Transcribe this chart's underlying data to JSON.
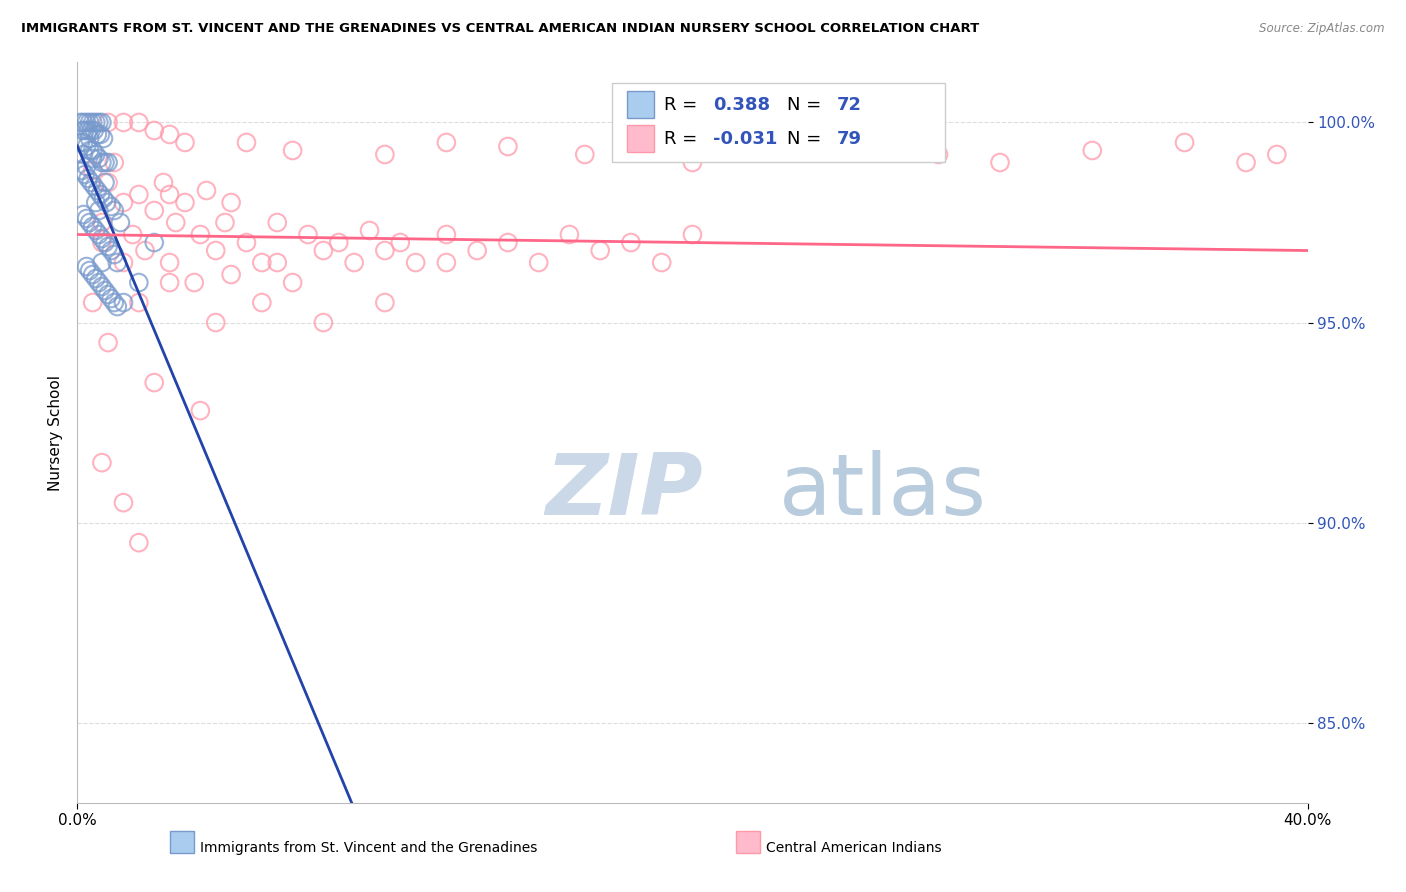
{
  "title": "IMMIGRANTS FROM ST. VINCENT AND THE GRENADINES VS CENTRAL AMERICAN INDIAN NURSERY SCHOOL CORRELATION CHART",
  "source": "Source: ZipAtlas.com",
  "ylabel": "Nursery School",
  "xlim": [
    0.0,
    40.0
  ],
  "ylim": [
    83.0,
    101.5
  ],
  "yticks": [
    85.0,
    90.0,
    95.0,
    100.0
  ],
  "ytick_labels": [
    "85.0%",
    "90.0%",
    "95.0%",
    "100.0%"
  ],
  "xtick_left": "0.0%",
  "xtick_right": "40.0%",
  "r_blue": 0.388,
  "n_blue": 72,
  "r_pink": -0.031,
  "n_pink": 79,
  "blue_edge": "#7799CC",
  "blue_fill": "#AACCEE",
  "pink_edge": "#FF99AA",
  "pink_fill": "#FFBBCC",
  "blue_line": "#2244AA",
  "pink_line": "#FF6688",
  "text_blue": "#3355BB",
  "watermark_color": "#DDEEF8",
  "grid_color": "#DDDDDD",
  "blue_points": [
    [
      0.1,
      100.0
    ],
    [
      0.2,
      100.0
    ],
    [
      0.3,
      100.0
    ],
    [
      0.4,
      100.0
    ],
    [
      0.5,
      100.0
    ],
    [
      0.6,
      100.0
    ],
    [
      0.7,
      100.0
    ],
    [
      0.8,
      100.0
    ],
    [
      0.15,
      99.8
    ],
    [
      0.25,
      99.8
    ],
    [
      0.35,
      99.8
    ],
    [
      0.45,
      99.8
    ],
    [
      0.55,
      99.8
    ],
    [
      0.65,
      99.7
    ],
    [
      0.75,
      99.7
    ],
    [
      0.85,
      99.6
    ],
    [
      0.1,
      99.5
    ],
    [
      0.2,
      99.5
    ],
    [
      0.3,
      99.4
    ],
    [
      0.4,
      99.3
    ],
    [
      0.5,
      99.3
    ],
    [
      0.6,
      99.2
    ],
    [
      0.7,
      99.1
    ],
    [
      0.8,
      99.0
    ],
    [
      0.9,
      99.0
    ],
    [
      1.0,
      99.0
    ],
    [
      0.15,
      98.8
    ],
    [
      0.25,
      98.7
    ],
    [
      0.35,
      98.6
    ],
    [
      0.45,
      98.5
    ],
    [
      0.55,
      98.4
    ],
    [
      0.65,
      98.3
    ],
    [
      0.75,
      98.2
    ],
    [
      0.85,
      98.1
    ],
    [
      0.95,
      98.0
    ],
    [
      1.1,
      97.9
    ],
    [
      1.2,
      97.8
    ],
    [
      0.2,
      97.7
    ],
    [
      0.3,
      97.6
    ],
    [
      0.4,
      97.5
    ],
    [
      0.5,
      97.4
    ],
    [
      0.6,
      97.3
    ],
    [
      0.7,
      97.2
    ],
    [
      0.8,
      97.1
    ],
    [
      0.9,
      97.0
    ],
    [
      1.0,
      96.9
    ],
    [
      1.1,
      96.8
    ],
    [
      1.2,
      96.7
    ],
    [
      1.3,
      96.5
    ],
    [
      0.3,
      96.4
    ],
    [
      0.4,
      96.3
    ],
    [
      0.5,
      96.2
    ],
    [
      0.6,
      96.1
    ],
    [
      0.7,
      96.0
    ],
    [
      0.8,
      95.9
    ],
    [
      0.9,
      95.8
    ],
    [
      1.0,
      95.7
    ],
    [
      1.1,
      95.6
    ],
    [
      1.2,
      95.5
    ],
    [
      1.3,
      95.4
    ],
    [
      0.2,
      99.2
    ],
    [
      0.3,
      98.9
    ],
    [
      0.4,
      99.6
    ],
    [
      0.5,
      99.1
    ],
    [
      0.6,
      98.0
    ],
    [
      0.7,
      97.8
    ],
    [
      0.8,
      96.5
    ],
    [
      1.5,
      95.5
    ],
    [
      2.0,
      96.0
    ],
    [
      2.5,
      97.0
    ],
    [
      0.9,
      98.5
    ],
    [
      1.4,
      97.5
    ]
  ],
  "pink_points": [
    [
      0.5,
      98.8
    ],
    [
      0.8,
      97.5
    ],
    [
      1.0,
      98.5
    ],
    [
      1.2,
      99.0
    ],
    [
      1.5,
      98.0
    ],
    [
      1.8,
      97.2
    ],
    [
      2.0,
      98.2
    ],
    [
      2.2,
      96.8
    ],
    [
      2.5,
      97.8
    ],
    [
      2.8,
      98.5
    ],
    [
      3.0,
      96.5
    ],
    [
      3.2,
      97.5
    ],
    [
      3.5,
      98.0
    ],
    [
      3.8,
      96.0
    ],
    [
      4.0,
      97.2
    ],
    [
      4.2,
      98.3
    ],
    [
      4.5,
      96.8
    ],
    [
      4.8,
      97.5
    ],
    [
      5.0,
      96.2
    ],
    [
      5.5,
      97.0
    ],
    [
      6.0,
      96.5
    ],
    [
      6.5,
      97.5
    ],
    [
      7.0,
      96.0
    ],
    [
      7.5,
      97.2
    ],
    [
      8.0,
      96.8
    ],
    [
      8.5,
      97.0
    ],
    [
      9.0,
      96.5
    ],
    [
      9.5,
      97.3
    ],
    [
      10.0,
      96.8
    ],
    [
      10.5,
      97.0
    ],
    [
      11.0,
      96.5
    ],
    [
      12.0,
      97.2
    ],
    [
      13.0,
      96.8
    ],
    [
      14.0,
      97.0
    ],
    [
      15.0,
      96.5
    ],
    [
      16.0,
      97.2
    ],
    [
      17.0,
      96.8
    ],
    [
      18.0,
      97.0
    ],
    [
      19.0,
      96.5
    ],
    [
      20.0,
      97.2
    ],
    [
      1.0,
      100.0
    ],
    [
      1.5,
      100.0
    ],
    [
      2.0,
      100.0
    ],
    [
      2.5,
      99.8
    ],
    [
      3.0,
      99.7
    ],
    [
      3.5,
      99.5
    ],
    [
      5.5,
      99.5
    ],
    [
      7.0,
      99.3
    ],
    [
      10.0,
      99.2
    ],
    [
      12.0,
      99.5
    ],
    [
      14.0,
      99.4
    ],
    [
      16.5,
      99.2
    ],
    [
      20.0,
      99.0
    ],
    [
      25.0,
      99.5
    ],
    [
      28.0,
      99.2
    ],
    [
      30.0,
      99.0
    ],
    [
      33.0,
      99.3
    ],
    [
      36.0,
      99.5
    ],
    [
      38.0,
      99.0
    ],
    [
      39.0,
      99.2
    ],
    [
      0.8,
      97.0
    ],
    [
      1.5,
      96.5
    ],
    [
      2.0,
      95.5
    ],
    [
      3.0,
      96.0
    ],
    [
      4.5,
      95.0
    ],
    [
      6.0,
      95.5
    ],
    [
      8.0,
      95.0
    ],
    [
      10.0,
      95.5
    ],
    [
      0.5,
      95.5
    ],
    [
      1.0,
      94.5
    ],
    [
      2.5,
      93.5
    ],
    [
      4.0,
      92.8
    ],
    [
      0.8,
      91.5
    ],
    [
      1.5,
      90.5
    ],
    [
      2.0,
      89.5
    ],
    [
      3.0,
      98.2
    ],
    [
      5.0,
      98.0
    ],
    [
      6.5,
      96.5
    ],
    [
      12.0,
      96.5
    ]
  ],
  "blue_trend": [
    0.0,
    3.0,
    99.2,
    101.2
  ],
  "pink_trend_y_at_0": 97.2,
  "pink_trend_y_at_40": 96.8
}
